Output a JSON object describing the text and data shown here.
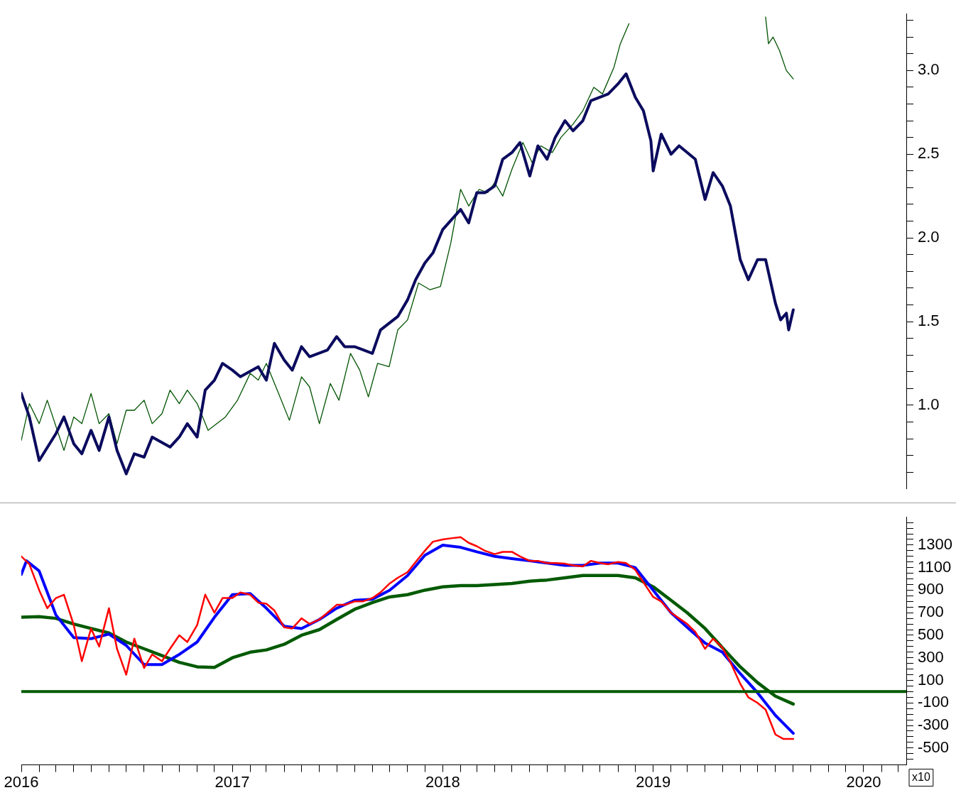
{
  "chart_data": [
    {
      "type": "line",
      "xlim": [
        "2016-01-01",
        "2020-03-15"
      ],
      "ylim": [
        0.5,
        3.34
      ],
      "grid": false,
      "legend": false,
      "marker": "none",
      "tick_labels": "y",
      "yticks": [
        {
          "value": 0.6,
          "label": null
        },
        {
          "value": 0.7,
          "label": null
        },
        {
          "value": 0.8,
          "label": null
        },
        {
          "value": 0.9,
          "label": null
        },
        {
          "value": 1,
          "label": "1.0"
        },
        {
          "value": 1.1,
          "label": null
        },
        {
          "value": 1.2,
          "label": null
        },
        {
          "value": 1.3,
          "label": null
        },
        {
          "value": 1.4,
          "label": null
        },
        {
          "value": 1.5,
          "label": "1.5"
        },
        {
          "value": 1.6,
          "label": null
        },
        {
          "value": 1.7,
          "label": null
        },
        {
          "value": 1.8,
          "label": null
        },
        {
          "value": 1.9,
          "label": null
        },
        {
          "value": 2,
          "label": "2.0"
        },
        {
          "value": 2.1,
          "label": null
        },
        {
          "value": 2.2,
          "label": null
        },
        {
          "value": 2.3,
          "label": null
        },
        {
          "value": 2.4,
          "label": null
        },
        {
          "value": 2.5,
          "label": "2.5"
        },
        {
          "value": 2.6,
          "label": null
        },
        {
          "value": 2.7,
          "label": null
        },
        {
          "value": 2.8,
          "label": null
        },
        {
          "value": 2.9,
          "label": null
        },
        {
          "value": 3,
          "label": "3.0"
        },
        {
          "value": 3.1,
          "label": null
        },
        {
          "value": 3.2,
          "label": null
        },
        {
          "value": 3.3,
          "label": null
        }
      ],
      "series": [
        {
          "color": "#0b0b5e",
          "x": [
            "2016-01-01",
            "2016-01-15",
            "2016-02-01",
            "2016-03-01",
            "2016-03-15",
            "2016-04-01",
            "2016-04-15",
            "2016-05-01",
            "2016-05-15",
            "2016-06-01",
            "2016-06-15",
            "2016-07-01",
            "2016-07-15",
            "2016-08-01",
            "2016-08-15",
            "2016-09-15",
            "2016-10-01",
            "2016-10-15",
            "2016-11-01",
            "2016-11-15",
            "2016-12-01",
            "2016-12-15",
            "2017-01-01",
            "2017-01-15",
            "2017-02-15",
            "2017-03-01",
            "2017-03-15",
            "2017-04-01",
            "2017-04-15",
            "2017-05-01",
            "2017-05-15",
            "2017-06-15",
            "2017-07-01",
            "2017-07-15",
            "2017-08-01",
            "2017-09-01",
            "2017-09-15",
            "2017-10-15",
            "2017-11-01",
            "2017-11-15",
            "2017-12-01",
            "2017-12-15",
            "2018-01-01",
            "2018-02-01",
            "2018-02-15",
            "2018-03-01",
            "2018-03-15",
            "2018-04-01",
            "2018-04-15",
            "2018-05-01",
            "2018-05-15",
            "2018-06-01",
            "2018-06-15",
            "2018-07-01",
            "2018-07-15",
            "2018-08-01",
            "2018-08-15",
            "2018-09-01",
            "2018-09-15",
            "2018-10-15",
            "2018-11-01",
            "2018-11-15",
            "2018-12-01",
            "2018-12-15",
            "2018-12-28",
            "2019-01-01",
            "2019-01-15",
            "2019-02-01",
            "2019-02-15",
            "2019-03-15",
            "2019-04-01",
            "2019-04-15",
            "2019-05-01",
            "2019-05-15",
            "2019-06-01",
            "2019-06-15",
            "2019-07-01",
            "2019-07-15",
            "2019-08-01",
            "2019-08-10",
            "2019-08-20",
            "2019-08-24",
            "2019-09-01"
          ],
          "values": [
            1.07,
            0.93,
            0.67,
            0.83,
            0.93,
            0.77,
            0.71,
            0.85,
            0.73,
            0.93,
            0.73,
            0.59,
            0.71,
            0.69,
            0.81,
            0.75,
            0.81,
            0.89,
            0.81,
            1.09,
            1.15,
            1.25,
            1.21,
            1.17,
            1.23,
            1.15,
            1.37,
            1.27,
            1.21,
            1.35,
            1.29,
            1.33,
            1.41,
            1.35,
            1.35,
            1.31,
            1.45,
            1.53,
            1.63,
            1.75,
            1.85,
            1.91,
            2.05,
            2.17,
            2.09,
            2.27,
            2.27,
            2.31,
            2.47,
            2.51,
            2.57,
            2.37,
            2.55,
            2.47,
            2.6,
            2.7,
            2.64,
            2.7,
            2.82,
            2.86,
            2.92,
            2.98,
            2.84,
            2.76,
            2.58,
            2.4,
            2.62,
            2.5,
            2.55,
            2.47,
            2.23,
            2.39,
            2.31,
            2.19,
            1.87,
            1.75,
            1.87,
            1.87,
            1.61,
            1.51,
            1.55,
            1.45,
            1.57
          ]
        },
        {
          "color": "#005200",
          "x": [
            "2016-01-01",
            "2016-01-15",
            "2016-02-01",
            "2016-02-15",
            "2016-03-15",
            "2016-04-01",
            "2016-04-15",
            "2016-05-01",
            "2016-05-15",
            "2016-06-01",
            "2016-06-15",
            "2016-07-01",
            "2016-07-15",
            "2016-08-01",
            "2016-08-15",
            "2016-09-01",
            "2016-09-15",
            "2016-10-01",
            "2016-10-15",
            "2016-11-01",
            "2016-11-20",
            "2016-12-20",
            "2017-01-10",
            "2017-02-01",
            "2017-02-15",
            "2017-03-01",
            "2017-03-20",
            "2017-04-10",
            "2017-05-01",
            "2017-05-15",
            "2017-06-01",
            "2017-06-20",
            "2017-07-05",
            "2017-07-25",
            "2017-08-10",
            "2017-08-25",
            "2017-09-10",
            "2017-09-30",
            "2017-10-15",
            "2017-11-01",
            "2017-11-20",
            "2017-12-10",
            "2017-12-28",
            "2018-01-15",
            "2018-02-01",
            "2018-02-15",
            "2018-03-05",
            "2018-03-20",
            "2018-04-01",
            "2018-04-15",
            "2018-05-01",
            "2018-05-20",
            "2018-06-05",
            "2018-06-20",
            "2018-07-10",
            "2018-07-25",
            "2018-08-15",
            "2018-09-01",
            "2018-09-20",
            "2018-10-05",
            "2018-10-25",
            "2018-11-05",
            "2018-11-20",
            "2019-01-01",
            "2019-07-15",
            "2019-07-20",
            "2019-07-28",
            "2019-08-08",
            "2019-08-20",
            "2019-09-01"
          ],
          "values": [
            0.79,
            1.01,
            0.89,
            1.03,
            0.73,
            0.93,
            0.89,
            1.07,
            0.89,
            0.95,
            0.77,
            0.97,
            0.97,
            1.03,
            0.89,
            0.95,
            1.09,
            1.01,
            1.09,
            1.01,
            0.85,
            0.93,
            1.03,
            1.19,
            1.15,
            1.25,
            1.09,
            0.91,
            1.17,
            1.11,
            0.89,
            1.13,
            1.03,
            1.31,
            1.21,
            1.05,
            1.25,
            1.23,
            1.45,
            1.51,
            1.73,
            1.69,
            1.71,
            1.97,
            2.29,
            2.19,
            2.29,
            2.27,
            2.33,
            2.25,
            2.41,
            2.57,
            2.45,
            2.55,
            2.51,
            2.6,
            2.68,
            2.76,
            2.9,
            2.86,
            3.02,
            3.16,
            3.28,
            null,
            3.32,
            3.16,
            3.2,
            3.12,
            3.0,
            2.95
          ]
        }
      ]
    },
    {
      "type": "line",
      "xlim": [
        "2016-01-01",
        "2020-03-15"
      ],
      "ylim": [
        -650,
        1550
      ],
      "grid": false,
      "legend": false,
      "marker": "none",
      "annotations": [
        "x10"
      ],
      "ref_lines": [
        {
          "axis": "y",
          "value": 0,
          "color": "#005a00"
        }
      ],
      "xticks": [
        {
          "value": "2016",
          "label": "2016"
        },
        {
          "value": "2016-02",
          "label": null
        },
        {
          "value": "2016-03",
          "label": null
        },
        {
          "value": "2016-04",
          "label": null
        },
        {
          "value": "2016-05",
          "label": null
        },
        {
          "value": "2016-06",
          "label": null
        },
        {
          "value": "2016-07",
          "label": null
        },
        {
          "value": "2016-08",
          "label": null
        },
        {
          "value": "2016-09",
          "label": null
        },
        {
          "value": "2016-10",
          "label": null
        },
        {
          "value": "2016-11",
          "label": null
        },
        {
          "value": "2016-12",
          "label": null
        },
        {
          "value": "2017",
          "label": "2017"
        },
        {
          "value": "2017-02",
          "label": null
        },
        {
          "value": "2017-03",
          "label": null
        },
        {
          "value": "2017-04",
          "label": null
        },
        {
          "value": "2017-05",
          "label": null
        },
        {
          "value": "2017-06",
          "label": null
        },
        {
          "value": "2017-07",
          "label": null
        },
        {
          "value": "2017-08",
          "label": null
        },
        {
          "value": "2017-09",
          "label": null
        },
        {
          "value": "2017-10",
          "label": null
        },
        {
          "value": "2017-11",
          "label": null
        },
        {
          "value": "2017-12",
          "label": null
        },
        {
          "value": "2018",
          "label": "2018"
        },
        {
          "value": "2018-02",
          "label": null
        },
        {
          "value": "2018-03",
          "label": null
        },
        {
          "value": "2018-04",
          "label": null
        },
        {
          "value": "2018-05",
          "label": null
        },
        {
          "value": "2018-06",
          "label": null
        },
        {
          "value": "2018-07",
          "label": null
        },
        {
          "value": "2018-08",
          "label": null
        },
        {
          "value": "2018-09",
          "label": null
        },
        {
          "value": "2018-10",
          "label": null
        },
        {
          "value": "2018-11",
          "label": null
        },
        {
          "value": "2018-12",
          "label": null
        },
        {
          "value": "2019",
          "label": "2019"
        },
        {
          "value": "2019-02",
          "label": null
        },
        {
          "value": "2019-03",
          "label": null
        },
        {
          "value": "2019-04",
          "label": null
        },
        {
          "value": "2019-05",
          "label": null
        },
        {
          "value": "2019-06",
          "label": null
        },
        {
          "value": "2019-07",
          "label": null
        },
        {
          "value": "2019-08",
          "label": null
        },
        {
          "value": "2019-09",
          "label": null
        },
        {
          "value": "2019-10",
          "label": null
        },
        {
          "value": "2019-11",
          "label": null
        },
        {
          "value": "2019-12",
          "label": null
        },
        {
          "value": "2020",
          "label": "2020"
        },
        {
          "value": "2020-02",
          "label": null
        },
        {
          "value": "2020-03",
          "label": null
        }
      ],
      "yticks": [
        {
          "value": -600,
          "label": null
        },
        {
          "value": -550,
          "label": null
        },
        {
          "value": -500,
          "label": "-500"
        },
        {
          "value": -450,
          "label": null
        },
        {
          "value": -400,
          "label": null
        },
        {
          "value": -350,
          "label": null
        },
        {
          "value": -300,
          "label": "-300"
        },
        {
          "value": -250,
          "label": null
        },
        {
          "value": -200,
          "label": null
        },
        {
          "value": -150,
          "label": null
        },
        {
          "value": -100,
          "label": "-100"
        },
        {
          "value": -50,
          "label": null
        },
        {
          "value": 0,
          "label": null
        },
        {
          "value": 50,
          "label": null
        },
        {
          "value": 100,
          "label": "100"
        },
        {
          "value": 150,
          "label": null
        },
        {
          "value": 200,
          "label": null
        },
        {
          "value": 250,
          "label": null
        },
        {
          "value": 300,
          "label": "300"
        },
        {
          "value": 350,
          "label": null
        },
        {
          "value": 400,
          "label": null
        },
        {
          "value": 450,
          "label": null
        },
        {
          "value": 500,
          "label": "500"
        },
        {
          "value": 550,
          "label": null
        },
        {
          "value": 600,
          "label": null
        },
        {
          "value": 650,
          "label": null
        },
        {
          "value": 700,
          "label": "700"
        },
        {
          "value": 750,
          "label": null
        },
        {
          "value": 800,
          "label": null
        },
        {
          "value": 850,
          "label": null
        },
        {
          "value": 900,
          "label": "900"
        },
        {
          "value": 950,
          "label": null
        },
        {
          "value": 1000,
          "label": null
        },
        {
          "value": 1050,
          "label": null
        },
        {
          "value": 1100,
          "label": "1100"
        },
        {
          "value": 1150,
          "label": null
        },
        {
          "value": 1200,
          "label": null
        },
        {
          "value": 1250,
          "label": null
        },
        {
          "value": 1300,
          "label": "1300"
        },
        {
          "value": 1350,
          "label": null
        },
        {
          "value": 1400,
          "label": null
        },
        {
          "value": 1450,
          "label": null
        },
        {
          "value": 1500,
          "label": null
        }
      ],
      "series": [
        {
          "color": "#005a00",
          "x": [
            "2016-01-01",
            "2016-02-01",
            "2016-03-01",
            "2016-04-01",
            "2016-05-01",
            "2016-06-01",
            "2016-07-01",
            "2016-08-01",
            "2016-09-01",
            "2016-10-01",
            "2016-11-01",
            "2016-12-01",
            "2017-01-01",
            "2017-02-01",
            "2017-03-01",
            "2017-04-01",
            "2017-05-01",
            "2017-06-01",
            "2017-07-01",
            "2017-08-01",
            "2017-09-01",
            "2017-10-01",
            "2017-11-01",
            "2017-12-01",
            "2018-01-01",
            "2018-02-01",
            "2018-03-01",
            "2018-04-01",
            "2018-05-01",
            "2018-06-01",
            "2018-07-01",
            "2018-08-01",
            "2018-09-01",
            "2018-10-01",
            "2018-11-01",
            "2018-12-01",
            "2019-01-01",
            "2019-02-01",
            "2019-03-01",
            "2019-04-01",
            "2019-05-01",
            "2019-06-01",
            "2019-07-01",
            "2019-08-01",
            "2019-09-01"
          ],
          "values": [
            660,
            665,
            650,
            600,
            560,
            520,
            440,
            380,
            320,
            260,
            220,
            215,
            300,
            350,
            370,
            420,
            500,
            550,
            640,
            730,
            790,
            840,
            860,
            900,
            930,
            940,
            940,
            950,
            960,
            980,
            990,
            1010,
            1030,
            1030,
            1030,
            1010,
            930,
            810,
            700,
            560,
            390,
            220,
            80,
            -40,
            -110
          ]
        },
        {
          "color": "#0000ff",
          "x": [
            "2016-01-01",
            "2016-01-10",
            "2016-02-01",
            "2016-03-01",
            "2016-04-01",
            "2016-05-01",
            "2016-06-01",
            "2016-07-01",
            "2016-08-01",
            "2016-09-01",
            "2016-10-01",
            "2016-11-01",
            "2016-12-01",
            "2017-01-01",
            "2017-02-01",
            "2017-03-01",
            "2017-04-01",
            "2017-05-01",
            "2017-06-01",
            "2017-07-01",
            "2017-08-01",
            "2017-09-01",
            "2017-10-01",
            "2017-11-01",
            "2017-12-01",
            "2018-01-01",
            "2018-02-01",
            "2018-03-01",
            "2018-04-01",
            "2018-05-01",
            "2018-06-01",
            "2018-07-01",
            "2018-08-01",
            "2018-09-01",
            "2018-10-01",
            "2018-11-01",
            "2018-12-01",
            "2019-01-01",
            "2019-02-01",
            "2019-03-01",
            "2019-04-01",
            "2019-05-01",
            "2019-06-01",
            "2019-07-01",
            "2019-08-01",
            "2019-09-01"
          ],
          "values": [
            1040,
            1160,
            1070,
            680,
            480,
            470,
            510,
            410,
            240,
            240,
            330,
            440,
            660,
            860,
            870,
            740,
            580,
            560,
            640,
            740,
            810,
            820,
            900,
            1030,
            1210,
            1300,
            1280,
            1240,
            1200,
            1180,
            1160,
            1140,
            1120,
            1120,
            1140,
            1140,
            1100,
            900,
            700,
            570,
            430,
            350,
            160,
            -10,
            -210,
            -370
          ]
        },
        {
          "color": "#ff0000",
          "x": [
            "2016-01-01",
            "2016-01-15",
            "2016-02-01",
            "2016-02-15",
            "2016-03-01",
            "2016-03-15",
            "2016-04-01",
            "2016-04-15",
            "2016-05-01",
            "2016-05-15",
            "2016-06-01",
            "2016-06-15",
            "2016-07-01",
            "2016-07-15",
            "2016-08-01",
            "2016-08-15",
            "2016-09-01",
            "2016-09-15",
            "2016-10-01",
            "2016-10-15",
            "2016-11-01",
            "2016-11-15",
            "2016-12-01",
            "2016-12-15",
            "2017-01-01",
            "2017-01-15",
            "2017-02-01",
            "2017-02-15",
            "2017-03-01",
            "2017-03-15",
            "2017-04-01",
            "2017-04-15",
            "2017-05-01",
            "2017-05-15",
            "2017-06-01",
            "2017-06-15",
            "2017-07-01",
            "2017-07-15",
            "2017-08-01",
            "2017-08-15",
            "2017-09-01",
            "2017-09-15",
            "2017-10-01",
            "2017-10-15",
            "2017-11-01",
            "2017-11-15",
            "2017-12-01",
            "2017-12-15",
            "2018-01-01",
            "2018-01-15",
            "2018-02-01",
            "2018-02-15",
            "2018-03-01",
            "2018-03-15",
            "2018-04-01",
            "2018-04-15",
            "2018-05-01",
            "2018-05-15",
            "2018-06-01",
            "2018-06-15",
            "2018-07-01",
            "2018-07-15",
            "2018-08-01",
            "2018-08-15",
            "2018-09-01",
            "2018-09-15",
            "2018-10-01",
            "2018-10-15",
            "2018-11-01",
            "2018-11-15",
            "2018-12-01",
            "2018-12-15",
            "2019-01-01",
            "2019-01-15",
            "2019-02-01",
            "2019-02-15",
            "2019-03-01",
            "2019-03-15",
            "2019-04-01",
            "2019-04-15",
            "2019-05-01",
            "2019-05-15",
            "2019-06-01",
            "2019-06-15",
            "2019-07-01",
            "2019-07-15",
            "2019-08-01",
            "2019-08-15",
            "2019-09-01"
          ],
          "values": [
            1200,
            1130,
            900,
            740,
            830,
            860,
            590,
            270,
            560,
            400,
            740,
            380,
            150,
            470,
            210,
            330,
            270,
            380,
            500,
            440,
            590,
            860,
            700,
            830,
            830,
            880,
            860,
            790,
            780,
            720,
            570,
            560,
            650,
            600,
            640,
            700,
            770,
            770,
            800,
            800,
            830,
            880,
            960,
            1010,
            1060,
            1150,
            1250,
            1330,
            1350,
            1360,
            1370,
            1320,
            1290,
            1250,
            1220,
            1240,
            1240,
            1200,
            1160,
            1160,
            1140,
            1140,
            1135,
            1120,
            1110,
            1160,
            1140,
            1130,
            1150,
            1140,
            1080,
            970,
            840,
            800,
            700,
            650,
            600,
            530,
            380,
            470,
            390,
            260,
            70,
            -50,
            -100,
            -160,
            -380,
            -420,
            -420
          ]
        }
      ]
    }
  ]
}
